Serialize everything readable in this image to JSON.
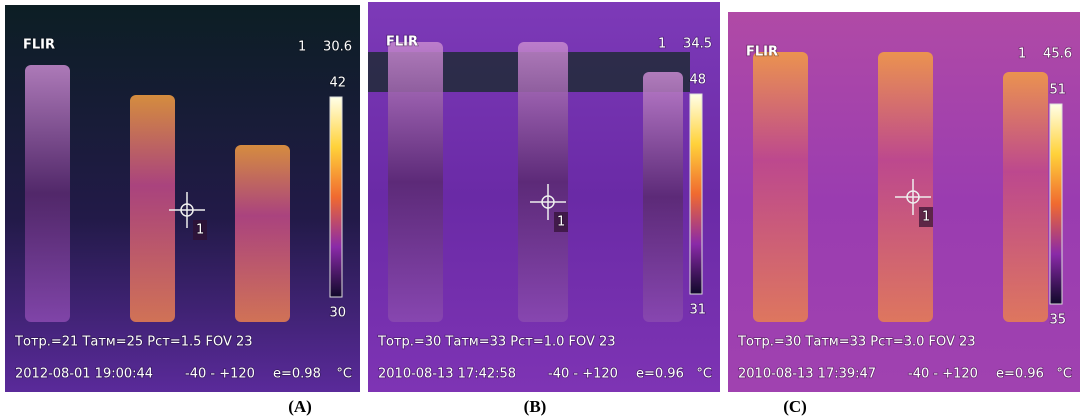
{
  "panels": [
    {
      "logo": "FLIR",
      "spot_label": "1",
      "spot_value": "30.6",
      "scale_max": "42",
      "scale_min": "30",
      "params": "Tотр.=21 Tатм=25 Рст=1.5 FOV 23",
      "datetime": "2012-08-01 19:00:44",
      "range": "-40 - +120",
      "emissivity": "e=0.98",
      "unit": "°C",
      "marker": "1",
      "caption": "(A)"
    },
    {
      "logo": "FLIR",
      "spot_label": "1",
      "spot_value": "34.5",
      "scale_max": "48",
      "scale_min": "31",
      "params": "Tотр.=30 Tатм=33 Рст=1.0 FOV 23",
      "datetime": "2010-08-13 17:42:58",
      "range": "-40 - +120",
      "emissivity": "e=0.96",
      "unit": "°C",
      "marker": "1",
      "caption": "(B)"
    },
    {
      "logo": "FLIR",
      "spot_label": "1",
      "spot_value": "45.6",
      "scale_max": "51",
      "scale_min": "35",
      "params": "Tотр.=30 Tатм=33 Рст=3.0 FOV 23",
      "datetime": "2010-08-13 17:39:47",
      "range": "-40 - +120",
      "emissivity": "e=0.96",
      "unit": "°C",
      "marker": "1",
      "caption": "(C)"
    }
  ]
}
